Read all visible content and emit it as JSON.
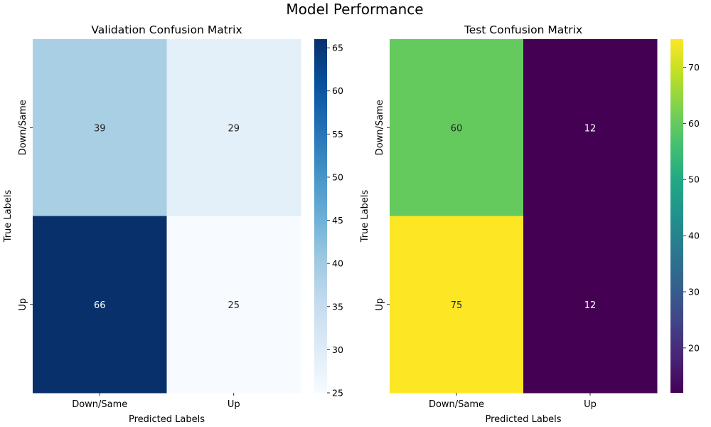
{
  "figure": {
    "suptitle": "Model Performance"
  },
  "chart_data": [
    {
      "type": "heatmap",
      "title": "Validation Confusion Matrix",
      "xlabel": "Predicted Labels",
      "ylabel": "True Labels",
      "x_categories": [
        "Down/Same",
        "Up"
      ],
      "y_categories": [
        "Down/Same",
        "Up"
      ],
      "values": [
        [
          39,
          29
        ],
        [
          66,
          25
        ]
      ],
      "colormap": "Blues",
      "colorbar": {
        "min": 25,
        "max": 66,
        "ticks": [
          25,
          30,
          35,
          40,
          45,
          50,
          55,
          60,
          65
        ]
      }
    },
    {
      "type": "heatmap",
      "title": "Test Confusion Matrix",
      "xlabel": "Predicted Labels",
      "ylabel": "True Labels",
      "x_categories": [
        "Down/Same",
        "Up"
      ],
      "y_categories": [
        "Down/Same",
        "Up"
      ],
      "values": [
        [
          60,
          12
        ],
        [
          75,
          12
        ]
      ],
      "colormap": "viridis",
      "colorbar": {
        "min": 12,
        "max": 75,
        "ticks": [
          20,
          30,
          40,
          50,
          60,
          70
        ]
      }
    }
  ]
}
